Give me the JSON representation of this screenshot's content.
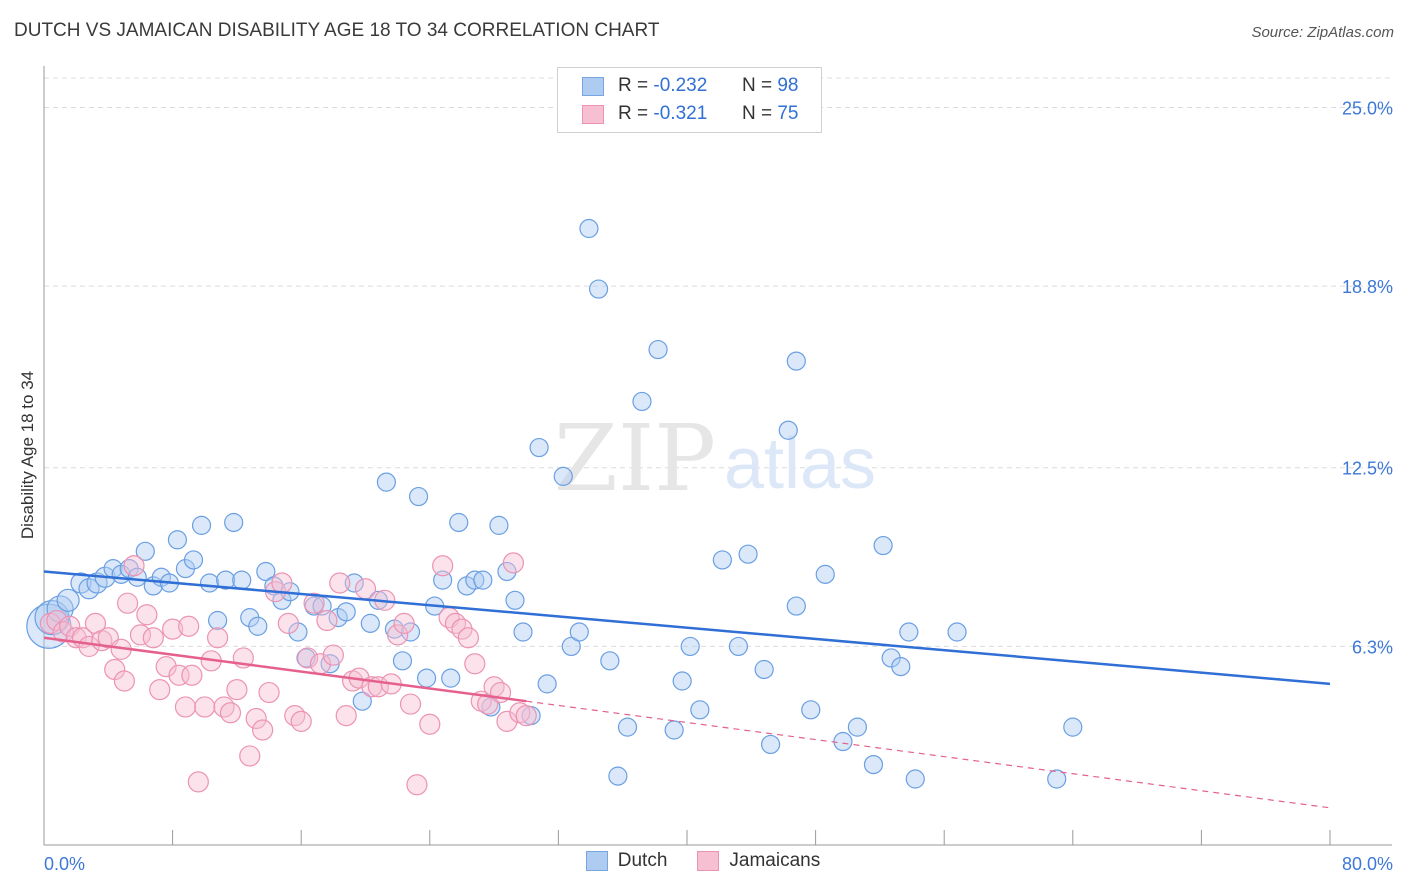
{
  "title": "DUTCH VS JAMAICAN DISABILITY AGE 18 TO 34 CORRELATION CHART",
  "source": "Source: ZipAtlas.com",
  "watermark": {
    "zip": "ZIP",
    "atlas": "atlas"
  },
  "stats": [
    {
      "r_label": "R =",
      "r_value": "-0.232",
      "n_label": "N =",
      "n_value": "98",
      "fill": "#aecbf2",
      "stroke": "#7aa6e0"
    },
    {
      "r_label": "R =",
      "r_value": "-0.321",
      "n_label": "N =",
      "n_value": "75",
      "fill": "#f7bfd2",
      "stroke": "#ec93b3"
    }
  ],
  "legend": [
    {
      "label": "Dutch",
      "fill": "#aecbf2",
      "stroke": "#7aa6e0"
    },
    {
      "label": "Jamaicans",
      "fill": "#f7bfd2",
      "stroke": "#ec93b3"
    }
  ],
  "chart_data": {
    "type": "scatter",
    "title": "DUTCH VS JAMAICAN DISABILITY AGE 18 TO 34 CORRELATION CHART",
    "xlabel": "",
    "ylabel": "Disability Age 18 to 34",
    "xlim": [
      0,
      80
    ],
    "ylim": [
      0,
      26.3
    ],
    "x_tick_labels": [
      "0.0%",
      "80.0%"
    ],
    "y_ticks": [
      6.3,
      12.5,
      18.8,
      25.0
    ],
    "y_tick_labels": [
      "6.3%",
      "12.5%",
      "18.8%",
      "25.0%"
    ],
    "grid": true,
    "series": [
      {
        "name": "Dutch",
        "color": "#6a9fe3",
        "fill": "#aecbf2",
        "trend": {
          "x": [
            0,
            80
          ],
          "y": [
            8.9,
            5.0
          ],
          "color": "#2f6fd6",
          "dashed_to": null
        },
        "points": [
          [
            0.3,
            7.0
          ],
          [
            0.5,
            7.3
          ],
          [
            1.0,
            7.6
          ],
          [
            1.5,
            7.9
          ],
          [
            2.3,
            8.5
          ],
          [
            2.8,
            8.3
          ],
          [
            3.3,
            8.5
          ],
          [
            3.8,
            8.7
          ],
          [
            4.3,
            9.0
          ],
          [
            4.8,
            8.8
          ],
          [
            5.3,
            9.0
          ],
          [
            5.8,
            8.7
          ],
          [
            6.3,
            9.6
          ],
          [
            6.8,
            8.4
          ],
          [
            7.3,
            8.7
          ],
          [
            7.8,
            8.5
          ],
          [
            8.3,
            10.0
          ],
          [
            8.8,
            9.0
          ],
          [
            9.3,
            9.3
          ],
          [
            9.8,
            10.5
          ],
          [
            10.3,
            8.5
          ],
          [
            10.8,
            7.2
          ],
          [
            11.3,
            8.6
          ],
          [
            11.8,
            10.6
          ],
          [
            12.3,
            8.6
          ],
          [
            12.8,
            7.3
          ],
          [
            13.3,
            7.0
          ],
          [
            13.8,
            8.9
          ],
          [
            14.3,
            8.4
          ],
          [
            14.8,
            7.9
          ],
          [
            15.3,
            8.2
          ],
          [
            15.8,
            6.8
          ],
          [
            16.3,
            5.9
          ],
          [
            16.8,
            7.7
          ],
          [
            17.3,
            7.7
          ],
          [
            17.8,
            5.7
          ],
          [
            18.3,
            7.3
          ],
          [
            18.8,
            7.5
          ],
          [
            19.3,
            8.5
          ],
          [
            19.8,
            4.4
          ],
          [
            20.3,
            7.1
          ],
          [
            20.8,
            7.9
          ],
          [
            21.3,
            12.0
          ],
          [
            21.8,
            6.9
          ],
          [
            22.3,
            5.8
          ],
          [
            22.8,
            6.8
          ],
          [
            23.3,
            11.5
          ],
          [
            23.8,
            5.2
          ],
          [
            24.3,
            7.7
          ],
          [
            24.8,
            8.6
          ],
          [
            25.3,
            5.2
          ],
          [
            25.8,
            10.6
          ],
          [
            26.3,
            8.4
          ],
          [
            26.8,
            8.6
          ],
          [
            27.3,
            8.6
          ],
          [
            27.8,
            4.2
          ],
          [
            28.3,
            10.5
          ],
          [
            28.8,
            8.9
          ],
          [
            29.3,
            7.9
          ],
          [
            29.8,
            6.8
          ],
          [
            30.3,
            3.9
          ],
          [
            30.8,
            13.2
          ],
          [
            31.3,
            5.0
          ],
          [
            32.3,
            12.2
          ],
          [
            32.8,
            6.3
          ],
          [
            33.3,
            6.8
          ],
          [
            33.9,
            20.8
          ],
          [
            34.5,
            18.7
          ],
          [
            35.2,
            5.8
          ],
          [
            35.7,
            1.8
          ],
          [
            36.3,
            3.5
          ],
          [
            37.2,
            14.8
          ],
          [
            38.2,
            16.6
          ],
          [
            39.2,
            3.4
          ],
          [
            39.7,
            5.1
          ],
          [
            40.2,
            6.3
          ],
          [
            40.8,
            4.1
          ],
          [
            42.2,
            9.3
          ],
          [
            43.2,
            6.3
          ],
          [
            43.8,
            9.5
          ],
          [
            44.8,
            5.5
          ],
          [
            45.2,
            2.9
          ],
          [
            46.3,
            13.8
          ],
          [
            46.8,
            7.7
          ],
          [
            47.7,
            4.1
          ],
          [
            48.6,
            8.8
          ],
          [
            49.7,
            3.0
          ],
          [
            50.6,
            3.5
          ],
          [
            51.6,
            2.2
          ],
          [
            52.2,
            9.8
          ],
          [
            52.7,
            5.9
          ],
          [
            53.3,
            5.6
          ],
          [
            53.8,
            6.8
          ],
          [
            54.2,
            1.7
          ],
          [
            56.8,
            6.8
          ],
          [
            63.0,
            1.7
          ],
          [
            64.0,
            3.5
          ],
          [
            46.8,
            16.2
          ]
        ],
        "point_sizes": [
          22,
          17,
          13,
          11,
          10,
          10,
          10,
          10,
          9,
          9,
          9,
          9,
          9,
          9,
          9,
          9,
          9,
          9,
          9,
          9,
          9,
          9,
          9,
          9,
          9,
          9,
          9,
          9,
          9,
          9,
          9,
          9,
          9,
          9,
          9,
          9,
          9,
          9,
          9,
          9,
          9,
          9,
          9,
          9,
          9,
          9,
          9,
          9,
          9,
          9,
          9,
          9,
          9,
          9,
          9,
          9,
          9,
          9,
          9,
          9,
          9,
          9,
          9,
          9,
          9,
          9,
          9,
          9,
          9,
          9,
          9,
          9,
          9,
          9,
          9,
          9,
          9,
          9,
          9,
          9,
          9,
          9,
          9,
          9,
          9,
          9,
          9,
          9,
          9,
          9,
          9,
          9,
          9,
          9,
          9,
          9,
          9,
          9
        ]
      },
      {
        "name": "Jamaicans",
        "color": "#ec93b3",
        "fill": "#f7bfd2",
        "trend": {
          "x": [
            0,
            30
          ],
          "y": [
            6.6,
            4.4
          ],
          "color": "#e5608d",
          "dashed_to": [
            80,
            0.7
          ]
        },
        "points": [
          [
            0.4,
            7.1
          ],
          [
            0.8,
            7.2
          ],
          [
            1.2,
            6.8
          ],
          [
            1.6,
            7.0
          ],
          [
            2.0,
            6.6
          ],
          [
            2.4,
            6.6
          ],
          [
            2.8,
            6.3
          ],
          [
            3.2,
            7.1
          ],
          [
            3.6,
            6.5
          ],
          [
            4.0,
            6.6
          ],
          [
            4.4,
            5.5
          ],
          [
            4.8,
            6.2
          ],
          [
            5.2,
            7.8
          ],
          [
            5.6,
            9.1
          ],
          [
            6.0,
            6.7
          ],
          [
            6.4,
            7.4
          ],
          [
            6.8,
            6.6
          ],
          [
            7.2,
            4.8
          ],
          [
            7.6,
            5.6
          ],
          [
            8.0,
            6.9
          ],
          [
            8.4,
            5.3
          ],
          [
            8.8,
            4.2
          ],
          [
            9.2,
            5.3
          ],
          [
            9.6,
            1.6
          ],
          [
            10.0,
            4.2
          ],
          [
            10.4,
            5.8
          ],
          [
            10.8,
            6.6
          ],
          [
            11.2,
            4.2
          ],
          [
            11.6,
            4.0
          ],
          [
            12.0,
            4.8
          ],
          [
            12.4,
            5.9
          ],
          [
            12.8,
            2.5
          ],
          [
            13.2,
            3.8
          ],
          [
            13.6,
            3.4
          ],
          [
            14.0,
            4.7
          ],
          [
            14.4,
            8.2
          ],
          [
            14.8,
            8.5
          ],
          [
            15.2,
            7.1
          ],
          [
            15.6,
            3.9
          ],
          [
            16.0,
            3.7
          ],
          [
            16.4,
            5.9
          ],
          [
            16.8,
            7.8
          ],
          [
            17.2,
            5.7
          ],
          [
            17.6,
            7.2
          ],
          [
            18.0,
            6.0
          ],
          [
            18.4,
            8.5
          ],
          [
            18.8,
            3.9
          ],
          [
            19.2,
            5.1
          ],
          [
            19.6,
            5.2
          ],
          [
            20.0,
            8.3
          ],
          [
            20.4,
            4.9
          ],
          [
            20.8,
            4.9
          ],
          [
            21.2,
            7.9
          ],
          [
            21.6,
            5.0
          ],
          [
            22.0,
            6.7
          ],
          [
            22.4,
            7.1
          ],
          [
            22.8,
            4.3
          ],
          [
            23.2,
            1.5
          ],
          [
            24.0,
            3.6
          ],
          [
            24.8,
            9.1
          ],
          [
            25.2,
            7.3
          ],
          [
            25.6,
            7.1
          ],
          [
            26.0,
            6.9
          ],
          [
            26.4,
            6.6
          ],
          [
            26.8,
            5.7
          ],
          [
            27.2,
            4.4
          ],
          [
            27.6,
            4.3
          ],
          [
            28.0,
            4.9
          ],
          [
            28.4,
            4.7
          ],
          [
            28.8,
            3.7
          ],
          [
            29.2,
            9.2
          ],
          [
            29.6,
            4.0
          ],
          [
            30.0,
            3.9
          ],
          [
            9.0,
            7.0
          ],
          [
            5.0,
            5.1
          ]
        ],
        "point_sizes": [
          10,
          10,
          10,
          10,
          10,
          10,
          10,
          10,
          10,
          10,
          10,
          10,
          10,
          10,
          10,
          10,
          10,
          10,
          10,
          10,
          10,
          10,
          10,
          10,
          10,
          10,
          10,
          10,
          10,
          10,
          10,
          10,
          10,
          10,
          10,
          10,
          10,
          10,
          10,
          10,
          10,
          10,
          10,
          10,
          10,
          10,
          10,
          10,
          10,
          10,
          10,
          10,
          10,
          10,
          10,
          10,
          10,
          10,
          10,
          10,
          10,
          10,
          10,
          10,
          10,
          10,
          10,
          10,
          10,
          10,
          10,
          10,
          10,
          10,
          10
        ]
      }
    ]
  }
}
